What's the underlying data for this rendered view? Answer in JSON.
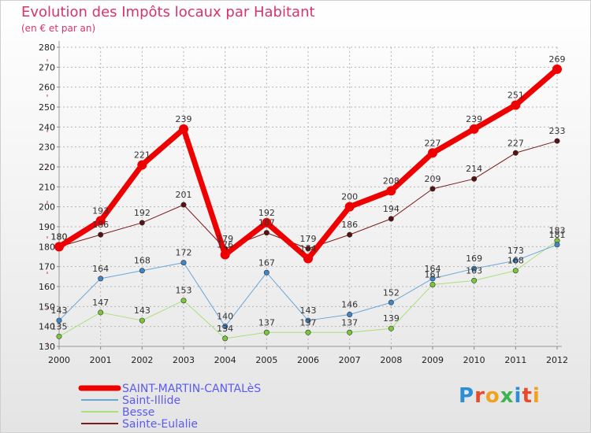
{
  "title": "Evolution des Impôts locaux par Habitant",
  "subtitle": "(en € et par an)",
  "logo": "Proxiti",
  "colors": {
    "title": "#d8336b",
    "legend_text": "#5b5bf0",
    "grid": "#b5b5b5"
  },
  "chart_data": {
    "type": "line",
    "title": "Evolution des Impôts locaux par Habitant",
    "ylabel": "(en € et par an)",
    "xlabel": "",
    "x": [
      "2000",
      "2001",
      "2002",
      "2003",
      "2004",
      "2005",
      "2006",
      "2007",
      "2008",
      "2009",
      "2010",
      "2011",
      "2012"
    ],
    "ylim": [
      130,
      280
    ],
    "yticks": [
      130,
      140,
      150,
      160,
      170,
      180,
      190,
      200,
      210,
      220,
      230,
      240,
      250,
      260,
      270,
      280
    ],
    "grid": true,
    "legend_position": "bottom-left",
    "series": [
      {
        "name": "Sainte-Eulalie",
        "color": "#7a1c1c",
        "marker": "#5a1010",
        "width": 1,
        "values": [
          180,
          186,
          192,
          201,
          179,
          187,
          179,
          186,
          194,
          209,
          214,
          227,
          233
        ]
      },
      {
        "name": "Besse",
        "color": "#a8e07a",
        "marker": "#78c83a",
        "width": 1,
        "values": [
          135,
          147,
          143,
          153,
          134,
          137,
          137,
          137,
          139,
          161,
          163,
          168,
          183
        ]
      },
      {
        "name": "Saint-Illide",
        "color": "#6aa6d6",
        "marker": "#3f86c8",
        "width": 1,
        "values": [
          143,
          164,
          168,
          172,
          140,
          167,
          143,
          146,
          152,
          164,
          169,
          173,
          181
        ]
      },
      {
        "name": "SAINT-MARTIN-CANTALèS",
        "color": "#ee0000",
        "marker": "#ee0000",
        "width": 7,
        "values": [
          180,
          193,
          221,
          239,
          176,
          192,
          174,
          200,
          208,
          227,
          239,
          251,
          269
        ]
      }
    ],
    "legend_order": [
      "SAINT-MARTIN-CANTALèS",
      "Saint-Illide",
      "Besse",
      "Sainte-Eulalie"
    ]
  }
}
